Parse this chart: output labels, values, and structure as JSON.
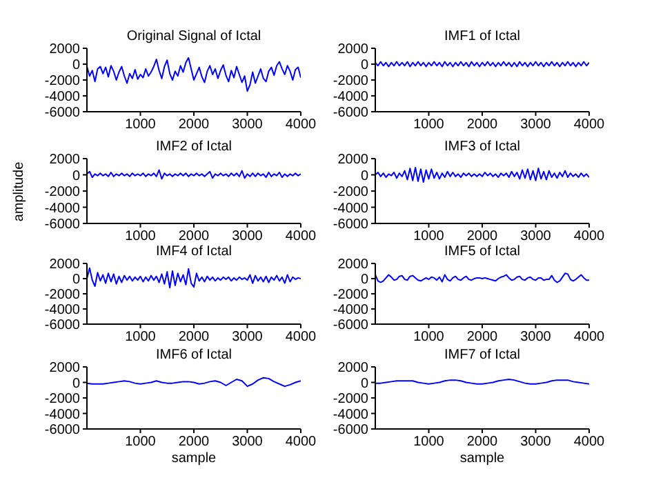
{
  "chart_data": [
    {
      "type": "line",
      "title": "Original Signal of Ictal",
      "color": "#0000ff",
      "xlim": [
        0,
        4000
      ],
      "ylim": [
        -6000,
        2000
      ],
      "xticks": [
        1000,
        2000,
        3000,
        4000
      ],
      "yticks": [
        -6000,
        -4000,
        -2000,
        0,
        2000
      ],
      "x": [
        0,
        50,
        100,
        150,
        200,
        250,
        300,
        350,
        400,
        450,
        500,
        550,
        600,
        650,
        700,
        750,
        800,
        850,
        900,
        950,
        1000,
        1050,
        1100,
        1150,
        1200,
        1250,
        1300,
        1350,
        1400,
        1450,
        1500,
        1550,
        1600,
        1650,
        1700,
        1750,
        1800,
        1850,
        1900,
        1950,
        2000,
        2050,
        2100,
        2150,
        2200,
        2250,
        2300,
        2350,
        2400,
        2450,
        2500,
        2550,
        2600,
        2650,
        2700,
        2750,
        2800,
        2850,
        2900,
        2950,
        3000,
        3050,
        3100,
        3150,
        3200,
        3250,
        3300,
        3350,
        3400,
        3450,
        3500,
        3550,
        3600,
        3650,
        3700,
        3750,
        3800,
        3850,
        3900,
        3950,
        4000
      ],
      "values": [
        -300,
        -1500,
        -800,
        -2200,
        -600,
        -300,
        -1200,
        -400,
        -1600,
        -200,
        -900,
        -2000,
        -1000,
        -300,
        -1500,
        -2400,
        -1200,
        -1800,
        -700,
        -1900,
        -1300,
        -1700,
        -600,
        -1500,
        -1000,
        -300,
        600,
        -800,
        -1800,
        -300,
        500,
        -1200,
        -2000,
        -900,
        -1500,
        -200,
        -1000,
        200,
        800,
        -600,
        -2000,
        -1200,
        -400,
        -1600,
        -2300,
        -900,
        -200,
        -1300,
        -600,
        -1800,
        -800,
        -100,
        -1400,
        -2200,
        -800,
        -1700,
        -300,
        -1300,
        -2300,
        -1500,
        -3400,
        -2600,
        -1000,
        -2400,
        -1500,
        -600,
        -1800,
        -2200,
        -900,
        -400,
        -1400,
        -200,
        300,
        -600,
        -1300,
        -200,
        -900,
        -2000,
        -700,
        -400,
        -1700
      ]
    },
    {
      "type": "line",
      "title": "IMF1 of Ictal",
      "color": "#0000ff",
      "xlim": [
        0,
        4000
      ],
      "ylim": [
        -6000,
        2000
      ],
      "xticks": [
        1000,
        2000,
        3000,
        4000
      ],
      "yticks": [
        -6000,
        -4000,
        -2000,
        0,
        2000
      ],
      "x": [
        0,
        50,
        100,
        150,
        200,
        250,
        300,
        350,
        400,
        450,
        500,
        550,
        600,
        650,
        700,
        750,
        800,
        850,
        900,
        950,
        1000,
        1050,
        1100,
        1150,
        1200,
        1250,
        1300,
        1350,
        1400,
        1450,
        1500,
        1550,
        1600,
        1650,
        1700,
        1750,
        1800,
        1850,
        1900,
        1950,
        2000,
        2050,
        2100,
        2150,
        2200,
        2250,
        2300,
        2350,
        2400,
        2450,
        2500,
        2550,
        2600,
        2650,
        2700,
        2750,
        2800,
        2850,
        2900,
        2950,
        3000,
        3050,
        3100,
        3150,
        3200,
        3250,
        3300,
        3350,
        3400,
        3450,
        3500,
        3550,
        3600,
        3650,
        3700,
        3750,
        3800,
        3850,
        3900,
        3950,
        4000
      ],
      "values": [
        200,
        -200,
        300,
        -200,
        200,
        -300,
        200,
        -200,
        300,
        -200,
        200,
        -200,
        300,
        -300,
        200,
        -200,
        300,
        -200,
        200,
        -300,
        200,
        -200,
        300,
        -200,
        200,
        -300,
        300,
        -200,
        200,
        -300,
        200,
        -200,
        300,
        -200,
        200,
        -300,
        300,
        -200,
        200,
        -300,
        200,
        -200,
        300,
        -200,
        200,
        -300,
        200,
        -200,
        300,
        -200,
        200,
        -300,
        200,
        -300,
        300,
        -200,
        200,
        -300,
        200,
        -200,
        300,
        -200,
        200,
        -300,
        200,
        -200,
        300,
        -200,
        200,
        -300,
        200,
        -200,
        300,
        -200,
        200,
        -300,
        200,
        -200,
        300,
        -200,
        200
      ]
    },
    {
      "type": "line",
      "title": "IMF2 of Ictal",
      "ylabel": "amplitude",
      "color": "#0000ff",
      "xlim": [
        0,
        4000
      ],
      "ylim": [
        -6000,
        2000
      ],
      "xticks": [
        1000,
        2000,
        3000,
        4000
      ],
      "yticks": [
        -6000,
        -4000,
        -2000,
        0,
        2000
      ],
      "x": [
        0,
        50,
        100,
        150,
        200,
        250,
        300,
        350,
        400,
        450,
        500,
        550,
        600,
        650,
        700,
        750,
        800,
        850,
        900,
        950,
        1000,
        1050,
        1100,
        1150,
        1200,
        1250,
        1300,
        1350,
        1400,
        1450,
        1500,
        1550,
        1600,
        1650,
        1700,
        1750,
        1800,
        1850,
        1900,
        1950,
        2000,
        2050,
        2100,
        2150,
        2200,
        2250,
        2300,
        2350,
        2400,
        2450,
        2500,
        2550,
        2600,
        2650,
        2700,
        2750,
        2800,
        2850,
        2900,
        2950,
        3000,
        3050,
        3100,
        3150,
        3200,
        3250,
        3300,
        3350,
        3400,
        3450,
        3500,
        3550,
        3600,
        3650,
        3700,
        3750,
        3800,
        3850,
        3900,
        3950,
        4000
      ],
      "values": [
        100,
        400,
        -300,
        100,
        -100,
        200,
        -100,
        100,
        -200,
        300,
        -200,
        100,
        -100,
        200,
        -100,
        100,
        -200,
        200,
        -100,
        100,
        -100,
        200,
        -200,
        100,
        -100,
        200,
        -200,
        600,
        -500,
        200,
        -100,
        100,
        -200,
        100,
        -100,
        200,
        -100,
        200,
        -200,
        100,
        -100,
        200,
        -100,
        100,
        -200,
        100,
        400,
        -400,
        100,
        -100,
        200,
        -100,
        100,
        -200,
        200,
        -100,
        200,
        -200,
        500,
        -400,
        100,
        -200,
        200,
        -200,
        200,
        -100,
        100,
        -300,
        300,
        -200,
        100,
        -100,
        300,
        -300,
        100,
        -200,
        100,
        -100,
        200,
        -100,
        100
      ]
    },
    {
      "type": "line",
      "title": "IMF3 of Ictal",
      "color": "#0000ff",
      "xlim": [
        0,
        4000
      ],
      "ylim": [
        -6000,
        2000
      ],
      "xticks": [
        1000,
        2000,
        3000,
        4000
      ],
      "yticks": [
        -6000,
        -4000,
        -2000,
        0,
        2000
      ],
      "x": [
        0,
        50,
        100,
        150,
        200,
        250,
        300,
        350,
        400,
        450,
        500,
        550,
        600,
        650,
        700,
        750,
        800,
        850,
        900,
        950,
        1000,
        1050,
        1100,
        1150,
        1200,
        1250,
        1300,
        1350,
        1400,
        1450,
        1500,
        1550,
        1600,
        1650,
        1700,
        1750,
        1800,
        1850,
        1900,
        1950,
        2000,
        2050,
        2100,
        2150,
        2200,
        2250,
        2300,
        2350,
        2400,
        2450,
        2500,
        2550,
        2600,
        2650,
        2700,
        2750,
        2800,
        2850,
        2900,
        2950,
        3000,
        3050,
        3100,
        3150,
        3200,
        3250,
        3300,
        3350,
        3400,
        3450,
        3500,
        3550,
        3600,
        3650,
        3700,
        3750,
        3800,
        3850,
        3900,
        3950,
        4000
      ],
      "values": [
        0,
        300,
        -200,
        200,
        -300,
        100,
        -100,
        300,
        -400,
        200,
        -200,
        500,
        -600,
        800,
        -700,
        900,
        -800,
        700,
        -900,
        600,
        -500,
        700,
        -400,
        300,
        -500,
        200,
        -300,
        400,
        -200,
        300,
        -200,
        100,
        -300,
        200,
        -100,
        200,
        -200,
        100,
        -200,
        100,
        -200,
        300,
        -100,
        200,
        -200,
        100,
        -300,
        200,
        -100,
        200,
        -300,
        400,
        -200,
        300,
        -500,
        600,
        -400,
        700,
        -600,
        500,
        -700,
        800,
        -500,
        400,
        -600,
        500,
        -300,
        200,
        -400,
        300,
        -200,
        500,
        -300,
        200,
        -200,
        100,
        -300,
        200,
        -200,
        100,
        -300
      ]
    },
    {
      "type": "line",
      "title": "IMF4 of Ictal",
      "color": "#0000ff",
      "xlim": [
        0,
        4000
      ],
      "ylim": [
        -6000,
        2000
      ],
      "xticks": [
        1000,
        2000,
        3000,
        4000
      ],
      "yticks": [
        -6000,
        -4000,
        -2000,
        0,
        2000
      ],
      "x": [
        0,
        50,
        100,
        150,
        200,
        250,
        300,
        350,
        400,
        450,
        500,
        550,
        600,
        650,
        700,
        750,
        800,
        850,
        900,
        950,
        1000,
        1050,
        1100,
        1150,
        1200,
        1250,
        1300,
        1350,
        1400,
        1450,
        1500,
        1550,
        1600,
        1650,
        1700,
        1750,
        1800,
        1850,
        1900,
        1950,
        2000,
        2050,
        2100,
        2150,
        2200,
        2250,
        2300,
        2350,
        2400,
        2450,
        2500,
        2550,
        2600,
        2650,
        2700,
        2750,
        2800,
        2850,
        2900,
        2950,
        3000,
        3050,
        3100,
        3150,
        3200,
        3250,
        3300,
        3350,
        3400,
        3450,
        3500,
        3550,
        3600,
        3650,
        3700,
        3750,
        3800,
        3850,
        3900,
        3950,
        4000
      ],
      "values": [
        0,
        1400,
        -200,
        -1000,
        800,
        -300,
        500,
        -600,
        700,
        -400,
        600,
        -700,
        300,
        -500,
        400,
        -200,
        300,
        -300,
        200,
        -200,
        300,
        -400,
        200,
        -300,
        400,
        -200,
        300,
        -500,
        600,
        -700,
        900,
        -1200,
        1000,
        -900,
        700,
        -400,
        500,
        -800,
        1300,
        -600,
        -1100,
        700,
        -300,
        200,
        -400,
        300,
        -200,
        200,
        -300,
        100,
        -200,
        200,
        -100,
        200,
        -300,
        100,
        -200,
        200,
        -100,
        100,
        -200,
        500,
        -600,
        400,
        -300,
        200,
        -400,
        300,
        -500,
        200,
        -200,
        400,
        -300,
        200,
        -600,
        500,
        -400,
        200,
        -100,
        100,
        0
      ]
    },
    {
      "type": "line",
      "title": "IMF5 of Ictal",
      "color": "#0000ff",
      "xlim": [
        0,
        4000
      ],
      "ylim": [
        -6000,
        2000
      ],
      "xticks": [
        1000,
        2000,
        3000,
        4000
      ],
      "yticks": [
        -6000,
        -4000,
        -2000,
        0,
        2000
      ],
      "x": [
        0,
        50,
        100,
        150,
        200,
        250,
        300,
        350,
        400,
        450,
        500,
        550,
        600,
        650,
        700,
        750,
        800,
        850,
        900,
        950,
        1000,
        1050,
        1100,
        1150,
        1200,
        1250,
        1300,
        1350,
        1400,
        1450,
        1500,
        1550,
        1600,
        1650,
        1700,
        1750,
        1800,
        1850,
        1900,
        1950,
        2000,
        2050,
        2100,
        2150,
        2200,
        2250,
        2300,
        2350,
        2400,
        2450,
        2500,
        2550,
        2600,
        2650,
        2700,
        2750,
        2800,
        2850,
        2900,
        2950,
        3000,
        3050,
        3100,
        3150,
        3200,
        3250,
        3300,
        3350,
        3400,
        3450,
        3500,
        3550,
        3600,
        3650,
        3700,
        3750,
        3800,
        3850,
        3900,
        3950,
        4000
      ],
      "values": [
        500,
        -300,
        -500,
        -300,
        100,
        500,
        200,
        -200,
        -100,
        300,
        400,
        -100,
        -200,
        300,
        400,
        100,
        -200,
        -300,
        -100,
        100,
        -100,
        200,
        100,
        -200,
        200,
        -400,
        500,
        -100,
        -300,
        100,
        300,
        -100,
        -200,
        100,
        300,
        -100,
        -200,
        0,
        100,
        100,
        0,
        100,
        0,
        -100,
        -200,
        -300,
        0,
        200,
        300,
        500,
        100,
        -200,
        -100,
        200,
        300,
        -100,
        -200,
        100,
        200,
        -100,
        -200,
        100,
        100,
        -200,
        -100,
        -100,
        400,
        -200,
        -500,
        -300,
        200,
        700,
        600,
        -100,
        -300,
        -100,
        200,
        500,
        100,
        -200,
        -200
      ]
    },
    {
      "type": "line",
      "title": "IMF6 of Ictal",
      "xlabel": "sample",
      "color": "#0000ff",
      "xlim": [
        0,
        4000
      ],
      "ylim": [
        -6000,
        2000
      ],
      "xticks": [
        1000,
        2000,
        3000,
        4000
      ],
      "yticks": [
        -6000,
        -4000,
        -2000,
        0,
        2000
      ],
      "x": [
        0,
        100,
        200,
        300,
        400,
        500,
        600,
        700,
        800,
        900,
        1000,
        1100,
        1200,
        1300,
        1400,
        1500,
        1600,
        1700,
        1800,
        1900,
        2000,
        2100,
        2200,
        2300,
        2400,
        2500,
        2600,
        2700,
        2800,
        2900,
        3000,
        3100,
        3200,
        3300,
        3400,
        3500,
        3600,
        3700,
        3800,
        3900,
        4000
      ],
      "values": [
        -100,
        -200,
        -200,
        -200,
        -100,
        0,
        100,
        200,
        100,
        -100,
        -200,
        -100,
        0,
        200,
        0,
        -100,
        -100,
        0,
        100,
        100,
        0,
        -200,
        -100,
        100,
        200,
        0,
        -400,
        0,
        400,
        200,
        -500,
        -200,
        300,
        600,
        500,
        100,
        -200,
        -500,
        -300,
        0,
        200
      ]
    },
    {
      "type": "line",
      "title": "IMF7 of Ictal",
      "xlabel": "sample",
      "color": "#0000ff",
      "xlim": [
        0,
        4000
      ],
      "ylim": [
        -6000,
        2000
      ],
      "xticks": [
        1000,
        2000,
        3000,
        4000
      ],
      "yticks": [
        -6000,
        -4000,
        -2000,
        0,
        2000
      ],
      "x": [
        0,
        100,
        200,
        300,
        400,
        500,
        600,
        700,
        800,
        900,
        1000,
        1100,
        1200,
        1300,
        1400,
        1500,
        1600,
        1700,
        1800,
        1900,
        2000,
        2100,
        2200,
        2300,
        2400,
        2500,
        2600,
        2700,
        2800,
        2900,
        3000,
        3100,
        3200,
        3300,
        3400,
        3500,
        3600,
        3700,
        3800,
        3900,
        4000
      ],
      "values": [
        -100,
        -100,
        0,
        100,
        200,
        200,
        200,
        200,
        0,
        -100,
        -200,
        -100,
        0,
        200,
        300,
        300,
        200,
        0,
        -100,
        -200,
        -200,
        -100,
        0,
        200,
        300,
        400,
        300,
        100,
        -100,
        -200,
        -200,
        -100,
        0,
        200,
        300,
        300,
        300,
        100,
        0,
        -100,
        -200
      ]
    }
  ]
}
